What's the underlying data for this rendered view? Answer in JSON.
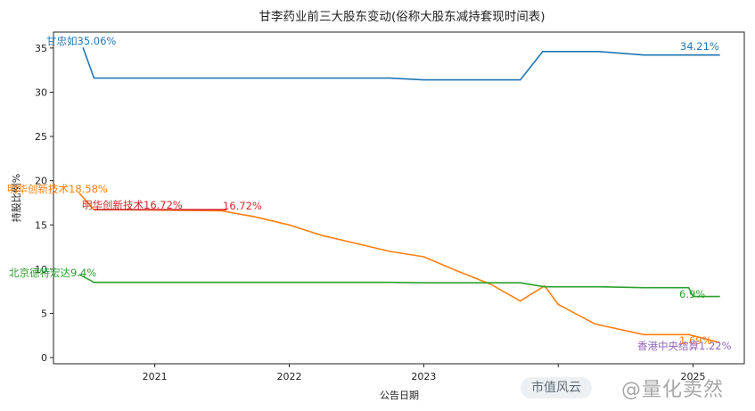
{
  "chart_data": {
    "type": "line",
    "title": "甘李药业前三大股东变动(俗称大股东减持套现时间表)",
    "xlabel": "公告日期",
    "ylabel": "持股比例%",
    "xlim": [
      "2020-04-01",
      "2025-05-20"
    ],
    "ylim": [
      -0.7,
      36.8
    ],
    "x_ticks": [
      {
        "date": "2021-01-01",
        "label": "2021"
      },
      {
        "date": "2022-01-01",
        "label": "2022"
      },
      {
        "date": "2023-01-01",
        "label": "2023"
      },
      {
        "date": "2024-01-01",
        "label": ""
      },
      {
        "date": "2025-01-01",
        "label": "2025"
      }
    ],
    "y_ticks": [
      0,
      5,
      10,
      15,
      20,
      25,
      30,
      35
    ],
    "grid": false,
    "legend": "none",
    "series": [
      {
        "name": "甘忠如",
        "color": "#1f77b4",
        "points": [
          [
            "2020-06-20",
            35.06
          ],
          [
            "2020-07-20",
            31.6
          ],
          [
            "2021-12-31",
            31.6
          ],
          [
            "2022-09-30",
            31.6
          ],
          [
            "2022-12-31",
            31.4
          ],
          [
            "2023-09-20",
            31.4
          ],
          [
            "2023-11-20",
            34.6
          ],
          [
            "2024-04-20",
            34.6
          ],
          [
            "2024-08-20",
            34.21
          ],
          [
            "2025-03-15",
            34.21
          ]
        ],
        "label": "甘忠如35.06%",
        "end_label": "34.21%"
      },
      {
        "name": "明华创新技术",
        "color": "#ff7f0e",
        "points": [
          [
            "2020-06-10",
            18.58
          ],
          [
            "2020-07-20",
            16.72
          ],
          [
            "2020-10-01",
            16.72
          ],
          [
            "2021-06-30",
            16.6
          ],
          [
            "2021-10-01",
            15.9
          ],
          [
            "2022-01-01",
            15.0
          ],
          [
            "2022-04-01",
            13.8
          ],
          [
            "2022-10-01",
            12.0
          ],
          [
            "2023-01-01",
            11.4
          ],
          [
            "2023-04-01",
            9.8
          ],
          [
            "2023-07-01",
            8.3
          ],
          [
            "2023-09-20",
            6.4
          ],
          [
            "2023-11-25",
            8.1
          ],
          [
            "2024-01-01",
            6.0
          ],
          [
            "2024-04-10",
            3.8
          ],
          [
            "2024-08-20",
            2.6
          ],
          [
            "2024-12-20",
            2.6
          ],
          [
            "2025-03-15",
            1.69
          ]
        ],
        "label": "明华创新技术18.58%",
        "end_label": "1.69%"
      },
      {
        "name": "北京德特宏达",
        "color": "#2ca02c",
        "points": [
          [
            "2020-06-10",
            9.4
          ],
          [
            "2020-07-20",
            8.5
          ],
          [
            "2021-06-30",
            8.5
          ],
          [
            "2022-09-30",
            8.5
          ],
          [
            "2023-01-01",
            8.45
          ],
          [
            "2023-09-20",
            8.45
          ],
          [
            "2023-11-25",
            8.0
          ],
          [
            "2024-04-20",
            8.0
          ],
          [
            "2024-08-20",
            7.9
          ],
          [
            "2024-12-20",
            7.9
          ],
          [
            "2025-01-01",
            6.9
          ],
          [
            "2025-03-15",
            6.9
          ]
        ],
        "label": "北京德特宏达9.4%",
        "end_label": "6.9%"
      },
      {
        "name": "明华创新技术",
        "color": "#d62728",
        "points": [
          [
            "2020-07-20",
            16.72
          ],
          [
            "2021-07-15",
            16.72
          ]
        ],
        "label": "明华创新技术16.72%",
        "end_label": "16.72%"
      },
      {
        "name": "香港中央结算",
        "color": "#9467bd",
        "points": [],
        "label": "香港中央结算1.22%"
      }
    ]
  },
  "watermark": {
    "left": "市值风云",
    "right": "@量化卖然"
  }
}
